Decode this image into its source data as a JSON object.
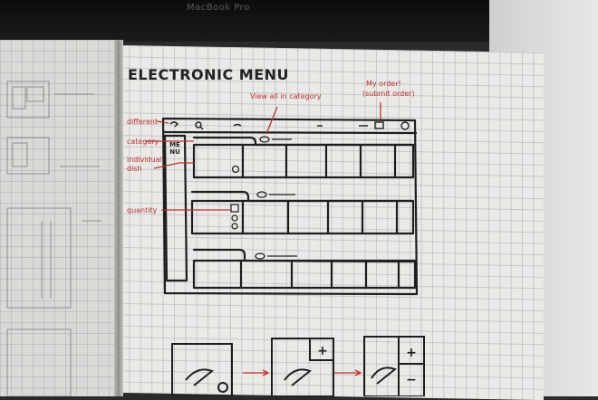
{
  "laptop": {
    "label": "MacBook Pro"
  },
  "sketch": {
    "title": "ELECTRONIC MENU",
    "menu_tab": "MENU",
    "annotations": {
      "view_all": "View all in category",
      "my_order": "My order!",
      "submit_order": "(submit order)",
      "different": "different",
      "category": "category",
      "individual": "individual",
      "dish": "dish",
      "quantity": "quantity"
    },
    "step_symbols": {
      "plus": "+",
      "minus": "−"
    }
  },
  "colors": {
    "ink": "#1e1e1e",
    "annotation_red": "#c22e2e",
    "paper": "#e9e9e6"
  }
}
